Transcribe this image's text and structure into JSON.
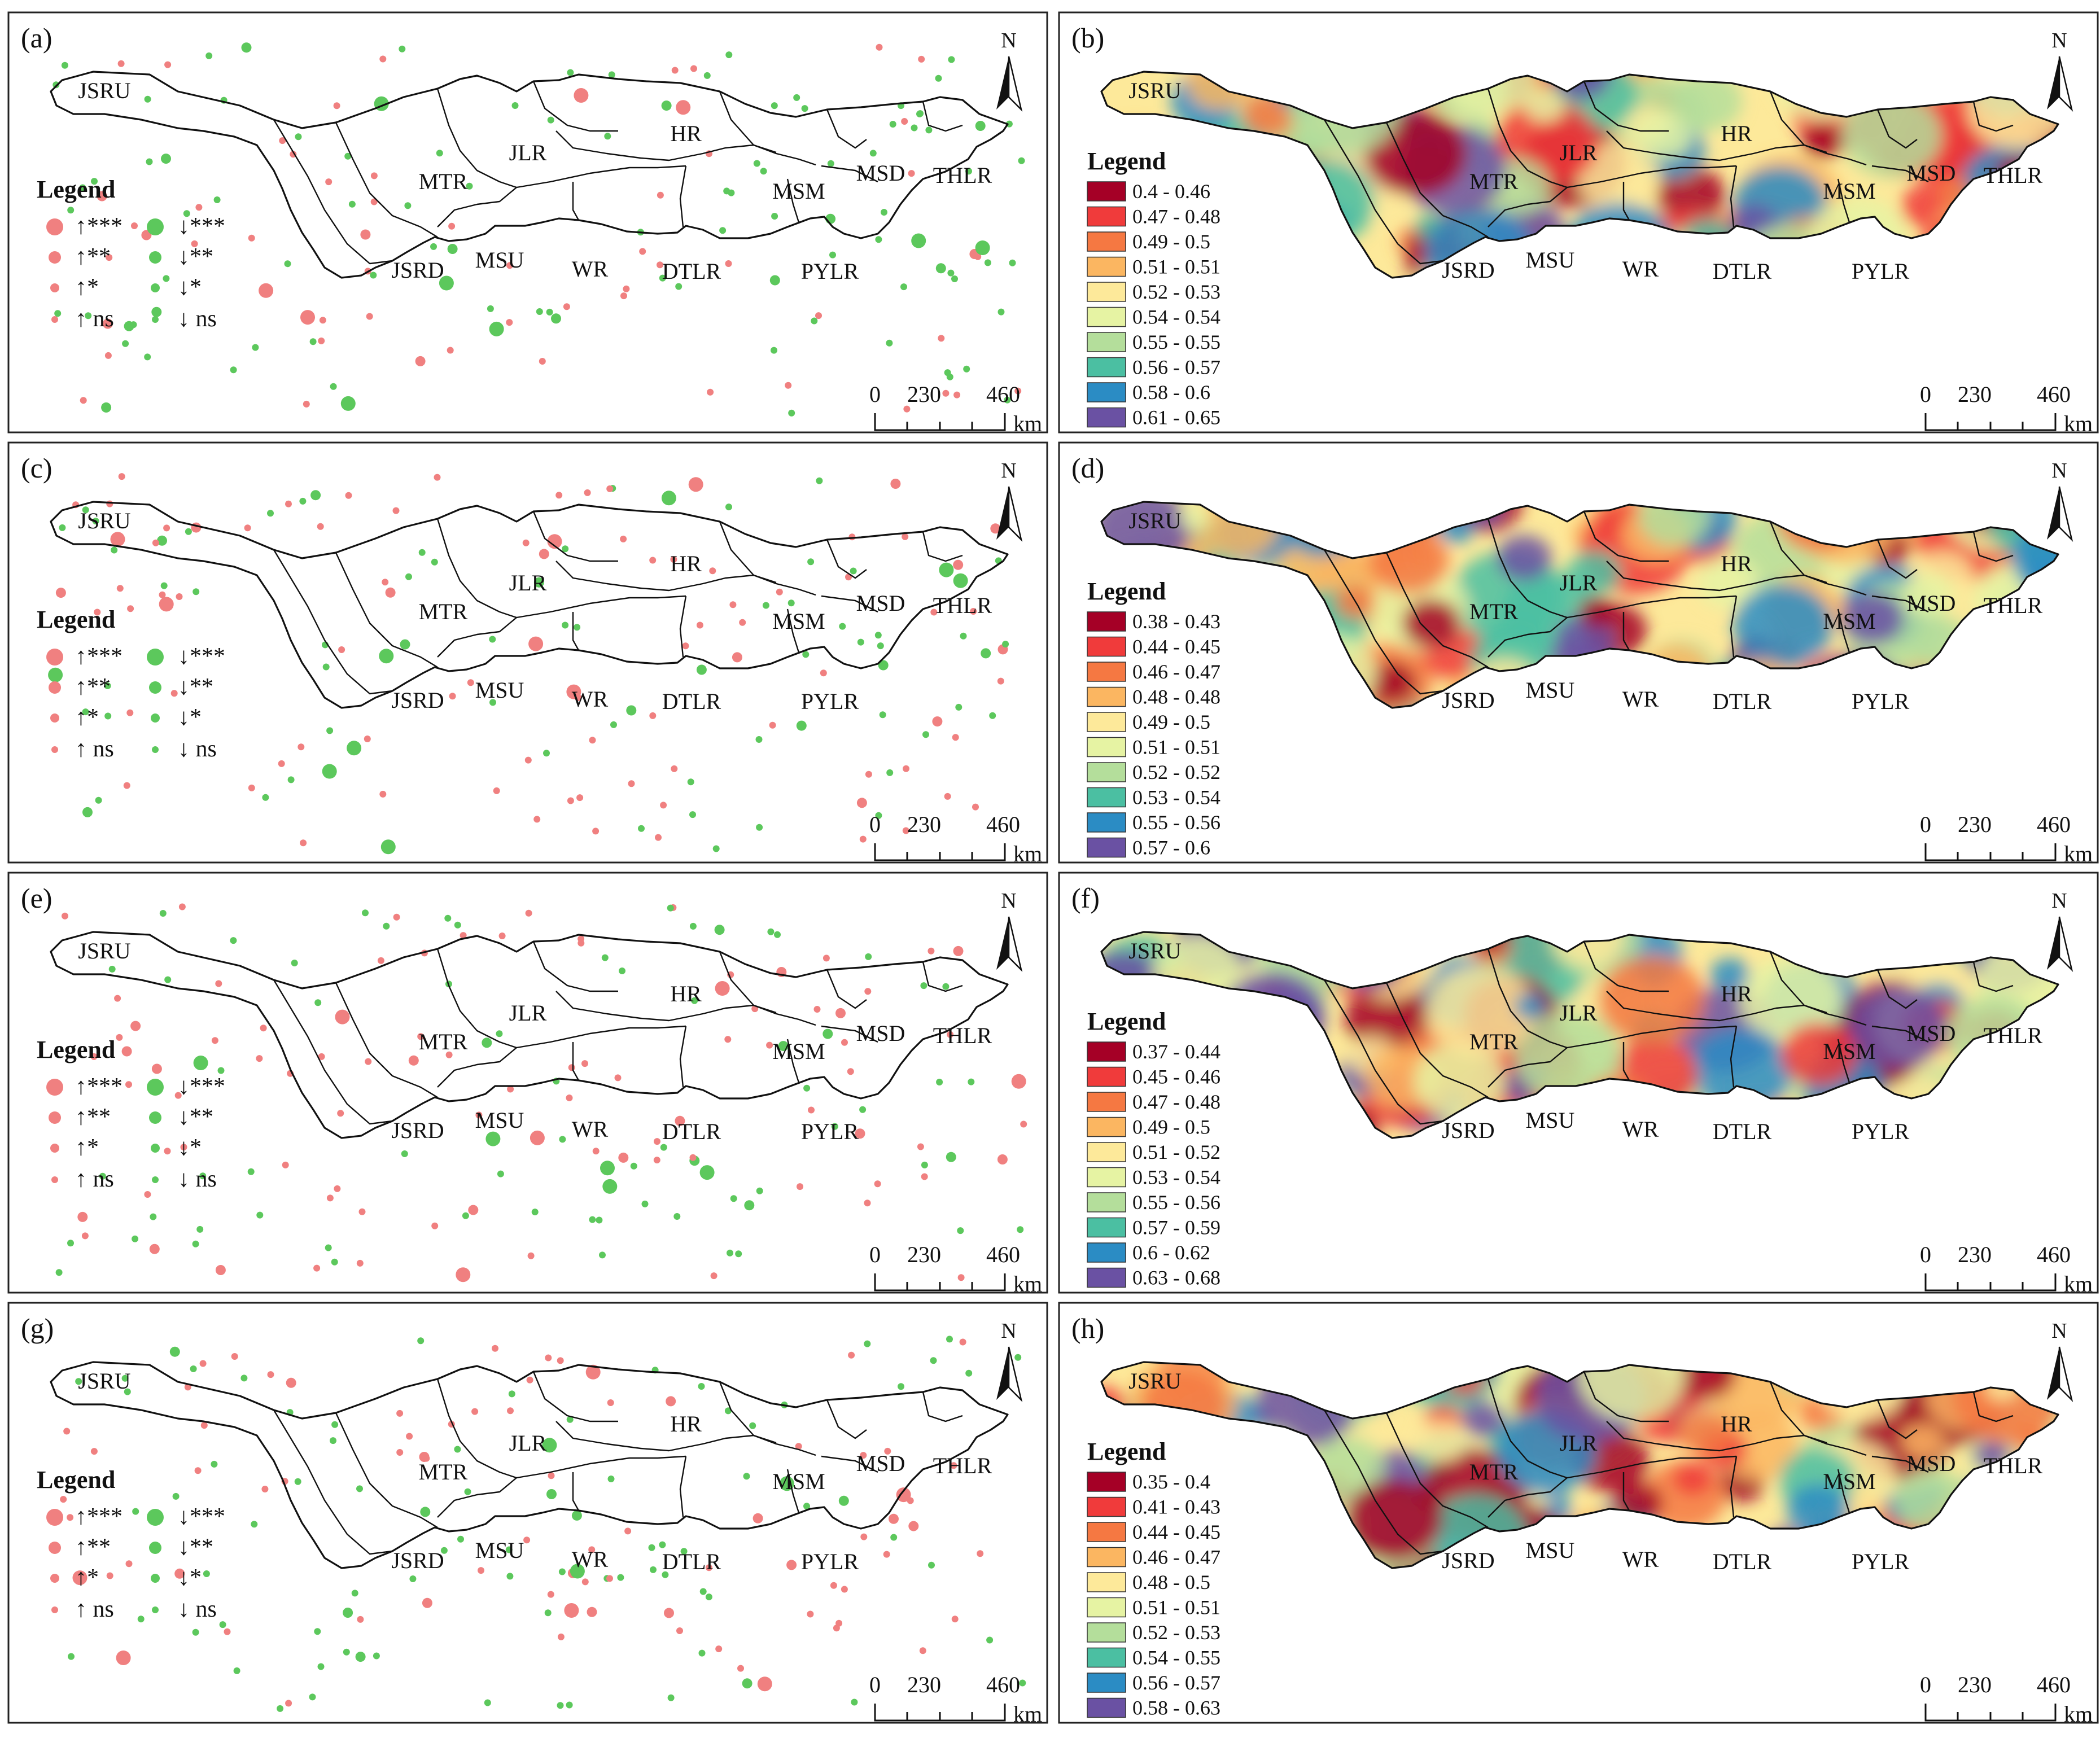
{
  "figure": {
    "panels": [
      {
        "letter": "(a)",
        "kind": "trend"
      },
      {
        "letter": "(b)",
        "kind": "raster",
        "classes": [
          "0.4 - 0.46",
          "0.47 - 0.48",
          "0.49 - 0.5",
          "0.51 - 0.51",
          "0.52 - 0.53",
          "0.54 - 0.54",
          "0.55 - 0.55",
          "0.56 - 0.57",
          "0.58 - 0.6",
          "0.61 - 0.65"
        ]
      },
      {
        "letter": "(c)",
        "kind": "trend"
      },
      {
        "letter": "(d)",
        "kind": "raster",
        "classes": [
          "0.38 - 0.43",
          "0.44 - 0.45",
          "0.46 - 0.47",
          "0.48 - 0.48",
          "0.49 - 0.5",
          "0.51 - 0.51",
          "0.52 - 0.52",
          "0.53 - 0.54",
          "0.55 - 0.56",
          "0.57 - 0.6"
        ]
      },
      {
        "letter": "(e)",
        "kind": "trend"
      },
      {
        "letter": "(f)",
        "kind": "raster",
        "classes": [
          "0.37 - 0.44",
          "0.45 - 0.46",
          "0.47 - 0.48",
          "0.49 - 0.5",
          "0.51 - 0.52",
          "0.53 - 0.54",
          "0.55 - 0.56",
          "0.57 - 0.59",
          "0.6 - 0.62",
          "0.63 - 0.68"
        ]
      },
      {
        "letter": "(g)",
        "kind": "trend"
      },
      {
        "letter": "(h)",
        "kind": "raster",
        "classes": [
          "0.35 - 0.4",
          "0.41 - 0.43",
          "0.44 - 0.45",
          "0.46 - 0.47",
          "0.48 - 0.5",
          "0.51 - 0.51",
          "0.52 - 0.53",
          "0.54 - 0.55",
          "0.56 - 0.57",
          "0.58 - 0.63"
        ]
      }
    ],
    "regions": [
      "JSRU",
      "MTR",
      "JLR",
      "HR",
      "MSM",
      "MSD",
      "THLR",
      "JSRD",
      "MSU",
      "WR",
      "DTLR",
      "PYLR"
    ],
    "legend_title": "Legend",
    "trend_legend": {
      "up": [
        "↑***",
        "↑**",
        "↑*",
        "↑ ns"
      ],
      "down": [
        "↓***",
        "↓**",
        "↓*",
        "↓ ns"
      ]
    },
    "scale": {
      "ticks": [
        "0",
        "230",
        "460"
      ],
      "unit": "km"
    },
    "north": "N",
    "colors": {
      "up": "#f08080",
      "down": "#5cc85c",
      "classes": [
        "#a50026",
        "#f03b3b",
        "#f57842",
        "#fbb661",
        "#fde99a",
        "#e6f3a3",
        "#b4de9b",
        "#4bbfa2",
        "#2b8cc4",
        "#6a51a3"
      ]
    }
  }
}
